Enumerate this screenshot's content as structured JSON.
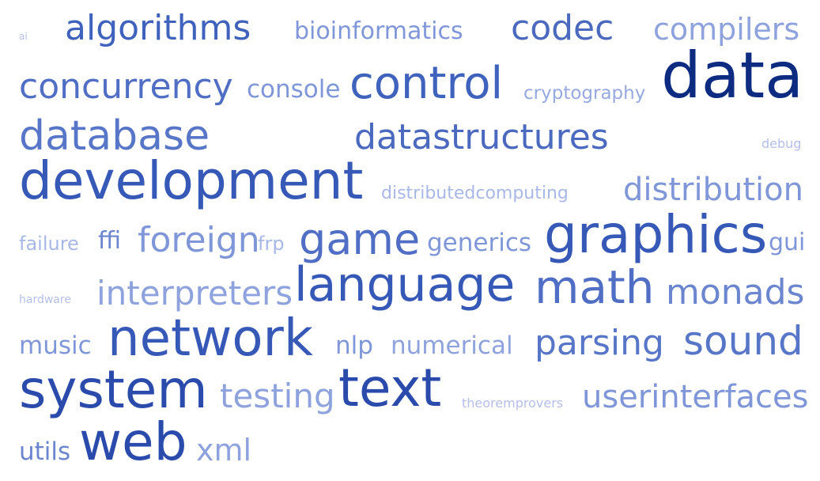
{
  "tag_cloud": {
    "words": [
      {
        "text": "ai",
        "weight": 1,
        "color": "#b4bfea"
      },
      {
        "text": "algorithms",
        "weight": 6,
        "color": "#3f63bd"
      },
      {
        "text": "bioinformatics",
        "weight": 4,
        "color": "#7f96d8"
      },
      {
        "text": "codec",
        "weight": 6,
        "color": "#4a69bf"
      },
      {
        "text": "compilers",
        "weight": 5,
        "color": "#8ea2dd"
      },
      {
        "text": "concurrency",
        "weight": 6,
        "color": "#4f6ec4"
      },
      {
        "text": "console",
        "weight": 4,
        "color": "#7f96d8"
      },
      {
        "text": "control",
        "weight": 7,
        "color": "#3f63bd"
      },
      {
        "text": "cryptography",
        "weight": 3,
        "color": "#96a9e0"
      },
      {
        "text": "data",
        "weight": 10,
        "color": "#0d2b80"
      },
      {
        "text": "database",
        "weight": 7,
        "color": "#5876c8"
      },
      {
        "text": "datastructures",
        "weight": 6,
        "color": "#4a69bf"
      },
      {
        "text": "debug",
        "weight": 1,
        "color": "#b4bfea"
      },
      {
        "text": "development",
        "weight": 9,
        "color": "#3658b6"
      },
      {
        "text": "distributedcomputing",
        "weight": 3,
        "color": "#a8b8e6"
      },
      {
        "text": "distribution",
        "weight": 6,
        "color": "#7f96d8"
      },
      {
        "text": "failure",
        "weight": 2,
        "color": "#a8b8e6"
      },
      {
        "text": "ffi",
        "weight": 4,
        "color": "#6b85cf"
      },
      {
        "text": "foreign",
        "weight": 6,
        "color": "#7f96d8"
      },
      {
        "text": "frp",
        "weight": 2,
        "color": "#a8b8e6"
      },
      {
        "text": "game",
        "weight": 7,
        "color": "#4f6ec4"
      },
      {
        "text": "generics",
        "weight": 4,
        "color": "#7f96d8"
      },
      {
        "text": "graphics",
        "weight": 9,
        "color": "#3658b6"
      },
      {
        "text": "gui",
        "weight": 4,
        "color": "#7f96d8"
      },
      {
        "text": "hardware",
        "weight": 1,
        "color": "#b4bfea"
      },
      {
        "text": "interpreters",
        "weight": 5,
        "color": "#8ea2dd"
      },
      {
        "text": "language",
        "weight": 8,
        "color": "#3658b6"
      },
      {
        "text": "math",
        "weight": 8,
        "color": "#4f6ec4"
      },
      {
        "text": "monads",
        "weight": 6,
        "color": "#6b85cf"
      },
      {
        "text": "music",
        "weight": 4,
        "color": "#7f96d8"
      },
      {
        "text": "network",
        "weight": 9,
        "color": "#3658b6"
      },
      {
        "text": "nlp",
        "weight": 4,
        "color": "#7f96d8"
      },
      {
        "text": "numerical",
        "weight": 4,
        "color": "#8ea2dd"
      },
      {
        "text": "parsing",
        "weight": 6,
        "color": "#5876c8"
      },
      {
        "text": "sound",
        "weight": 7,
        "color": "#5876c8"
      },
      {
        "text": "system",
        "weight": 9,
        "color": "#2a4bab"
      },
      {
        "text": "testing",
        "weight": 5,
        "color": "#8ea2dd"
      },
      {
        "text": "text",
        "weight": 9,
        "color": "#2a4bab"
      },
      {
        "text": "theoremprovers",
        "weight": 1,
        "color": "#b4bfea"
      },
      {
        "text": "userinterfaces",
        "weight": 5,
        "color": "#7f96d8"
      },
      {
        "text": "utils",
        "weight": 4,
        "color": "#6b85cf"
      },
      {
        "text": "web",
        "weight": 9,
        "color": "#2a4bab"
      },
      {
        "text": "xml",
        "weight": 5,
        "color": "#8ea2dd"
      }
    ]
  }
}
